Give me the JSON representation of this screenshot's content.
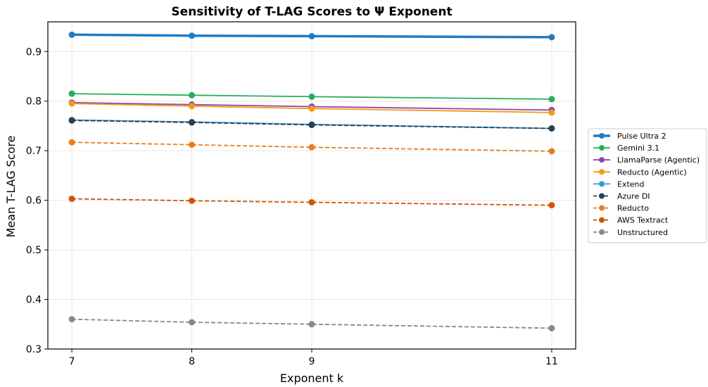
{
  "chart_data": {
    "type": "line",
    "title": "Sensitivity of T-LAG Scores to Ψ Exponent",
    "xlabel": "Exponent k",
    "ylabel": "Mean T-LAG Score",
    "x": [
      7,
      8,
      9,
      11
    ],
    "x_ticks": [
      "7",
      "8",
      "9",
      "11"
    ],
    "xlim": [
      6.8,
      11.2
    ],
    "ylim": [
      0.3,
      0.96
    ],
    "y_ticks": [
      "0.3",
      "0.4",
      "0.5",
      "0.6",
      "0.7",
      "0.8",
      "0.9"
    ],
    "y_tick_values": [
      0.3,
      0.4,
      0.5,
      0.6,
      0.7,
      0.8,
      0.9
    ],
    "grid": true,
    "legend_position": "outside-right",
    "series": [
      {
        "name": "Pulse Ultra 2",
        "values": [
          0.934,
          0.932,
          0.931,
          0.929
        ],
        "color": "#1f7bc4",
        "style": "solid",
        "bold": true
      },
      {
        "name": "Gemini 3.1",
        "values": [
          0.815,
          0.812,
          0.809,
          0.804
        ],
        "color": "#27ae60",
        "style": "solid"
      },
      {
        "name": "LlamaParse (Agentic)",
        "values": [
          0.797,
          0.793,
          0.789,
          0.782
        ],
        "color": "#8e44ad",
        "style": "solid"
      },
      {
        "name": "Reducto (Agentic)",
        "values": [
          0.795,
          0.79,
          0.785,
          0.777
        ],
        "color": "#f39c12",
        "style": "solid"
      },
      {
        "name": "Extend",
        "values": [
          0.762,
          0.758,
          0.753,
          0.745
        ],
        "color": "#3498db",
        "style": "solid"
      },
      {
        "name": "Azure DI",
        "values": [
          0.761,
          0.757,
          0.752,
          0.745
        ],
        "color": "#2c3e50",
        "style": "dashed"
      },
      {
        "name": "Reducto",
        "values": [
          0.717,
          0.712,
          0.707,
          0.699
        ],
        "color": "#e67e22",
        "style": "dashed"
      },
      {
        "name": "AWS Textract",
        "values": [
          0.603,
          0.599,
          0.596,
          0.59
        ],
        "color": "#d35400",
        "style": "dashed"
      },
      {
        "name": "Unstructured",
        "values": [
          0.36,
          0.354,
          0.35,
          0.342
        ],
        "color": "#7f8c8d",
        "style": "dashed"
      }
    ]
  }
}
